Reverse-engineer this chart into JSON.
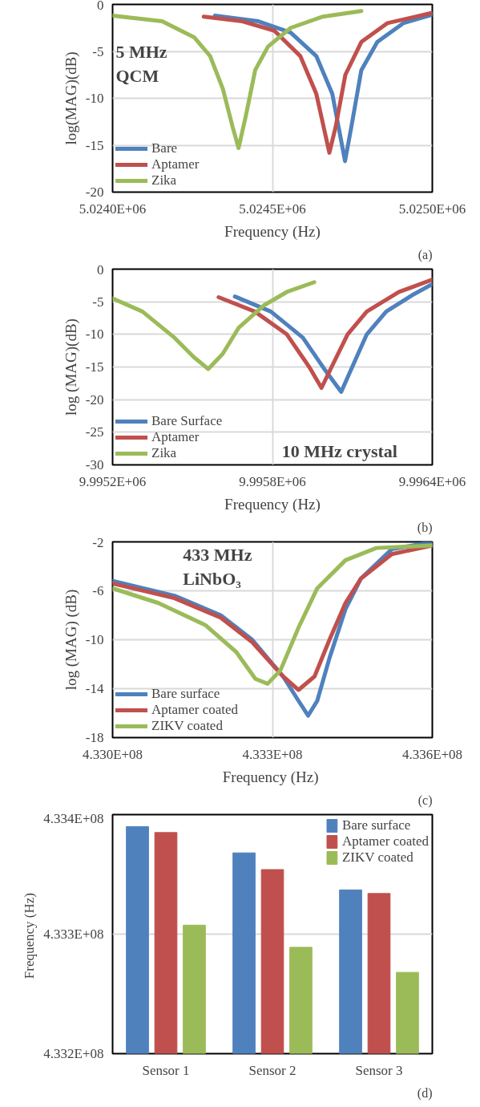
{
  "chart_data": [
    {
      "type": "line",
      "xlabel": "Frequency (Hz)",
      "ylabel": "log(MAG)(dB)",
      "annotations": [
        "5 MHz\nQCM",
        "(a)"
      ],
      "xlim": [
        5024000,
        5025000
      ],
      "xticks": [
        {
          "value": 5024000,
          "label": "5.0240E+06"
        },
        {
          "value": 5024500,
          "label": "5.0245E+06"
        },
        {
          "value": 5025000,
          "label": "5.0250E+06"
        }
      ],
      "ylim": [
        -20,
        0
      ],
      "yticks": [
        -20,
        -15,
        -10,
        -5,
        0
      ],
      "grid": true,
      "legend": "bottom left",
      "line_style": "solid",
      "marker": "none",
      "series": [
        {
          "name": "Bare",
          "color": "#4f81bd",
          "x": [
            5024320,
            5024456,
            5024557,
            5024637,
            5024687,
            5024712,
            5024727,
            5024747,
            5024778,
            5024828,
            5024909,
            5025000
          ],
          "values": [
            -1.2,
            -1.8,
            -3,
            -5.5,
            -9.5,
            -14,
            -16.7,
            -13,
            -7,
            -4,
            -2,
            -1.1
          ]
        },
        {
          "name": "Aptamer",
          "color": "#c0504d",
          "x": [
            5024285,
            5024406,
            5024506,
            5024587,
            5024637,
            5024663,
            5024678,
            5024698,
            5024728,
            5024778,
            5024859,
            5025000
          ],
          "values": [
            -1.3,
            -1.8,
            -2.8,
            -5.5,
            -9.5,
            -13.5,
            -15.8,
            -13,
            -7.5,
            -4,
            -2,
            -0.9
          ]
        },
        {
          "name": "Zika",
          "color": "#9bbb59",
          "x": [
            5024000,
            5024155,
            5024255,
            5024305,
            5024345,
            5024375,
            5024394,
            5024416,
            5024446,
            5024486,
            5024557,
            5024658,
            5024778
          ],
          "values": [
            -1.2,
            -1.8,
            -3.5,
            -5.5,
            -9,
            -13,
            -15.3,
            -12,
            -7,
            -4.5,
            -2.5,
            -1.3,
            -0.7
          ]
        }
      ]
    },
    {
      "type": "line",
      "xlabel": "Frequency (Hz)",
      "ylabel": "log (MAG)(dB)",
      "annotations": [
        "10 MHz crystal",
        "(b)"
      ],
      "xlim": [
        9995200,
        9996400
      ],
      "xticks": [
        {
          "value": 9995200,
          "label": "9.9952E+06"
        },
        {
          "value": 9995800,
          "label": "9.9958E+06"
        },
        {
          "value": 9996400,
          "label": "9.9964E+06"
        }
      ],
      "ylim": [
        -30,
        0
      ],
      "yticks": [
        -30,
        -25,
        -20,
        -15,
        -10,
        -5,
        0
      ],
      "grid": true,
      "legend": "bottom left",
      "line_style": "solid",
      "marker": "none",
      "series": [
        {
          "name": "Bare Surface",
          "color": "#4f81bd",
          "x": [
            9995659,
            9995794,
            9995914,
            9995998,
            9996058,
            9996094,
            9996154,
            9996227,
            9996324,
            9996400
          ],
          "values": [
            -4.2,
            -6.5,
            -10.5,
            -15.5,
            -18.8,
            -15.5,
            -10,
            -6.5,
            -4,
            -2.3
          ]
        },
        {
          "name": "Aptamer",
          "color": "#c0504d",
          "x": [
            9995598,
            9995734,
            9995854,
            9995938,
            9995984,
            9996022,
            9996082,
            9996154,
            9996275,
            9996400
          ],
          "values": [
            -4.3,
            -6.5,
            -10,
            -15,
            -18.2,
            -15,
            -10,
            -6.5,
            -3.5,
            -1.6
          ]
        },
        {
          "name": "Zika",
          "color": "#9bbb59",
          "x": [
            9995200,
            9995312,
            9995432,
            9995505,
            9995559,
            9995613,
            9995673,
            9995770,
            9995854,
            9995957
          ],
          "values": [
            -4.5,
            -6.5,
            -10.5,
            -13.5,
            -15.3,
            -13,
            -9,
            -5.5,
            -3.5,
            -2
          ]
        }
      ]
    },
    {
      "type": "line",
      "xlabel": "Frequency  (Hz)",
      "ylabel": "log (MAG) (dB)",
      "annotations": [
        "433 MHz\nLiNbO₃",
        "(c)"
      ],
      "xlim": [
        433000000,
        433600000
      ],
      "xticks": [
        {
          "value": 433000000,
          "label": "4.330E+08"
        },
        {
          "value": 433300000,
          "label": "4.333E+08"
        },
        {
          "value": 433600000,
          "label": "4.336E+08"
        }
      ],
      "ylim": [
        -18,
        -2
      ],
      "yticks": [
        -18,
        -14,
        -10,
        -6,
        -2
      ],
      "grid": true,
      "legend": "bottom left",
      "line_style": "solid",
      "marker": "none",
      "series": [
        {
          "name": "Bare surface",
          "color": "#4f81bd",
          "x": [
            433000000,
            433116000,
            433203000,
            433262000,
            433320000,
            433349000,
            433367000,
            433384000,
            433407000,
            433437000,
            433466000,
            433524000,
            433600000
          ],
          "values": [
            -5.2,
            -6.4,
            -8,
            -10,
            -13,
            -15,
            -16.2,
            -15,
            -11.5,
            -7.5,
            -5,
            -2.6,
            -2
          ]
        },
        {
          "name": "Aptamer coated",
          "color": "#c0504d",
          "x": [
            433000000,
            433116000,
            433203000,
            433262000,
            433320000,
            433349000,
            433379000,
            433407000,
            433437000,
            433466000,
            433524000,
            433600000
          ],
          "values": [
            -5.4,
            -6.6,
            -8.2,
            -10.2,
            -13,
            -14.1,
            -13,
            -10,
            -7,
            -5,
            -3,
            -2.3
          ]
        },
        {
          "name": "ZIKV coated",
          "color": "#9bbb59",
          "x": [
            433000000,
            433086000,
            433174000,
            433232000,
            433268000,
            433291000,
            433315000,
            433349000,
            433384000,
            433437000,
            433495000,
            433600000
          ],
          "values": [
            -5.8,
            -7,
            -8.8,
            -11,
            -13.2,
            -13.6,
            -12.5,
            -9,
            -5.8,
            -3.5,
            -2.5,
            -2.3
          ]
        }
      ]
    },
    {
      "type": "bar",
      "ylabel": "Frequency  (Hz)",
      "annotations": [
        "(d)"
      ],
      "categories": [
        "Sensor 1",
        "Sensor 2",
        "Sensor 3"
      ],
      "ylim": [
        433200000,
        433400000
      ],
      "yticks": [
        {
          "value": 433200000,
          "label": "4.332E+08"
        },
        {
          "value": 433300000,
          "label": "4.333E+08"
        },
        {
          "value": 433400000,
          "label": "4.334E+08"
        }
      ],
      "grid": "y",
      "legend": "top right",
      "series": [
        {
          "name": "Bare surface",
          "color": "#4f81bd",
          "values": [
            433390000,
            433368000,
            433337000
          ]
        },
        {
          "name": "Aptamer coated",
          "color": "#c0504d",
          "values": [
            433385000,
            433354000,
            433334000
          ]
        },
        {
          "name": "ZIKV coated",
          "color": "#9bbb59",
          "values": [
            433307500,
            433289000,
            433268000
          ]
        }
      ]
    }
  ]
}
